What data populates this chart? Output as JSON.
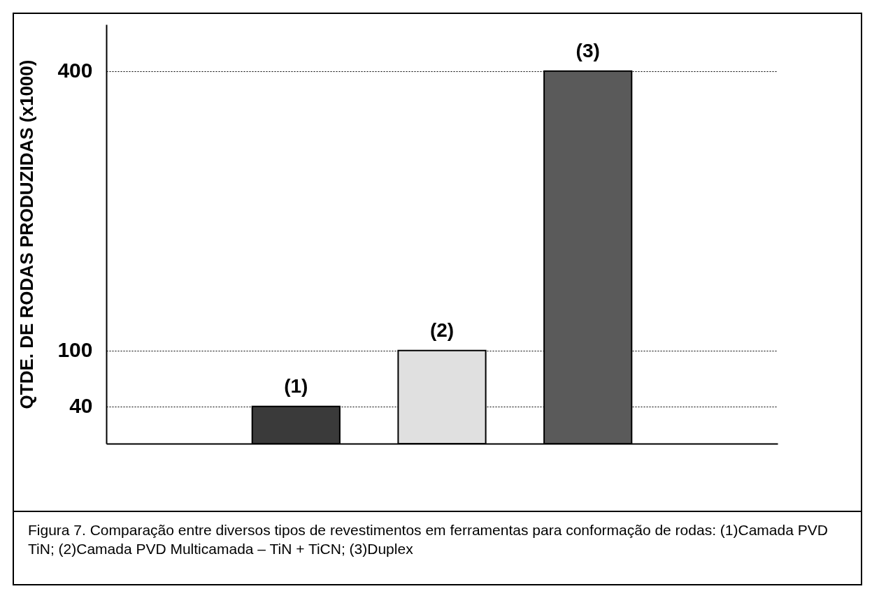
{
  "chart_data": {
    "type": "bar",
    "ylabel": "QTDE. DE RODAS PRODUZIDAS (x1000)",
    "categories": [
      "(1)",
      "(2)",
      "(3)"
    ],
    "values": [
      40,
      100,
      400
    ],
    "colors": [
      "#3a3a3a",
      "#e0e0e0",
      "#5a5a5a"
    ],
    "ylim": [
      0,
      450
    ],
    "yticks": [
      40,
      100,
      400
    ],
    "grid": "y",
    "tick_labels": "y",
    "annotations": [
      "Figura 7. Comparação entre diversos tipos de revestimentos em ferramentas para conformação de rodas: (1)Camada PVD TiN; (2)Camada PVD Multicamada – TiN + TiCN; (3)Duplex"
    ]
  }
}
